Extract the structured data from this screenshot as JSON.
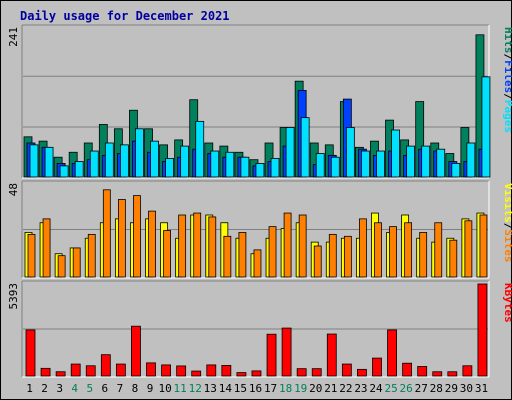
{
  "title": "Daily usage for December 2021",
  "colors": {
    "hits": "#00805c",
    "files": "#0040ff",
    "pages": "#00e0ff",
    "visits": "#ffff00",
    "sites": "#ff8000",
    "kbytes": "#ff0000",
    "weekend_label": "#00805c",
    "weekday_label": "#000000",
    "panel_bg": "#c0c0c0",
    "title": "#0000a0"
  },
  "chart_data": [
    {
      "type": "bar",
      "panel": "top",
      "ymax_label": "241",
      "ylim": [
        0,
        241
      ],
      "legend": [
        {
          "text": "Pages",
          "color": "#00e0ff"
        },
        {
          "text": "Files",
          "color": "#0040ff"
        },
        {
          "text": "Hits",
          "color": "#00805c"
        }
      ],
      "series": [
        {
          "name": "Hits",
          "values": [
            65,
            58,
            32,
            40,
            55,
            85,
            78,
            108,
            78,
            52,
            60,
            125,
            55,
            50,
            40,
            28,
            55,
            80,
            155,
            55,
            52,
            122,
            48,
            58,
            92,
            60,
            122,
            55,
            38,
            80,
            230
          ]
        },
        {
          "name": "Files",
          "values": [
            55,
            48,
            22,
            22,
            28,
            35,
            38,
            58,
            40,
            25,
            32,
            45,
            38,
            32,
            32,
            18,
            25,
            50,
            140,
            20,
            35,
            126,
            45,
            35,
            42,
            35,
            45,
            42,
            25,
            25,
            45
          ]
        },
        {
          "name": "Pages",
          "values": [
            52,
            48,
            18,
            25,
            42,
            55,
            52,
            78,
            58,
            30,
            50,
            90,
            42,
            40,
            32,
            22,
            30,
            80,
            96,
            38,
            32,
            80,
            42,
            42,
            76,
            50,
            50,
            45,
            22,
            55,
            162
          ]
        }
      ]
    },
    {
      "type": "bar",
      "panel": "middle",
      "ymax_label": "48",
      "ylim": [
        0,
        48
      ],
      "legend": [
        {
          "text": "Sites",
          "color": "#ff8000"
        },
        {
          "text": "Visits",
          "color": "#ffff00"
        }
      ],
      "series": [
        {
          "name": "Visits",
          "values": [
            23,
            28,
            12,
            15,
            20,
            28,
            30,
            28,
            30,
            28,
            20,
            32,
            32,
            28,
            20,
            12,
            20,
            25,
            28,
            18,
            18,
            20,
            20,
            33,
            23,
            32,
            20,
            18,
            20,
            30,
            33
          ]
        },
        {
          "name": "Sites",
          "values": [
            22,
            30,
            11,
            15,
            22,
            45,
            40,
            42,
            34,
            24,
            32,
            33,
            31,
            21,
            23,
            14,
            26,
            33,
            32,
            16,
            22,
            21,
            30,
            28,
            26,
            28,
            23,
            28,
            19,
            29,
            32
          ]
        }
      ]
    },
    {
      "type": "bar",
      "panel": "bottom",
      "ymax_label": "5393",
      "ylim": [
        0,
        5393
      ],
      "legend": [
        {
          "text": "KBytes",
          "color": "#ff0000"
        }
      ],
      "series": [
        {
          "name": "KBytes",
          "values": [
            2700,
            450,
            250,
            700,
            600,
            1250,
            700,
            2920,
            770,
            650,
            590,
            290,
            650,
            620,
            200,
            300,
            2450,
            2810,
            430,
            430,
            2460,
            700,
            390,
            1050,
            2700,
            750,
            560,
            250,
            250,
            600,
            5393
          ]
        }
      ]
    }
  ],
  "x_labels": [
    "1",
    "2",
    "3",
    "4",
    "5",
    "6",
    "7",
    "8",
    "9",
    "10",
    "11",
    "12",
    "13",
    "14",
    "15",
    "16",
    "17",
    "18",
    "19",
    "20",
    "21",
    "22",
    "23",
    "24",
    "25",
    "26",
    "27",
    "28",
    "29",
    "30",
    "31"
  ],
  "weekend_days": [
    4,
    5,
    11,
    12,
    18,
    19,
    25,
    26
  ]
}
